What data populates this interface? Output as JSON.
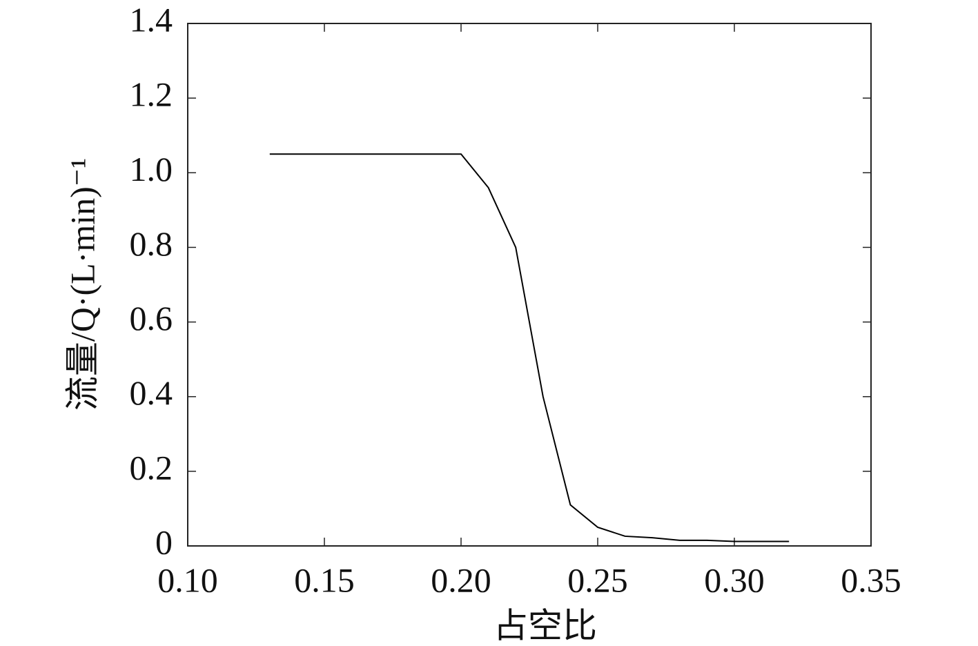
{
  "chart_data": {
    "type": "line",
    "xlabel": "占空比",
    "ylabel": "流量/Q·(L·min)⁻¹",
    "x": [
      0.13,
      0.2,
      0.21,
      0.22,
      0.23,
      0.24,
      0.25,
      0.26,
      0.27,
      0.28,
      0.29,
      0.3,
      0.31,
      0.32
    ],
    "series": [
      {
        "color": "#000000",
        "values": [
          1.05,
          1.05,
          0.96,
          0.8,
          0.4,
          0.11,
          0.05,
          0.026,
          0.022,
          0.015,
          0.015,
          0.012,
          0.012,
          0.012
        ]
      }
    ],
    "xlim": [
      0.1,
      0.35
    ],
    "ylim": [
      0,
      1.4
    ],
    "xticks": [
      {
        "value": 0.1,
        "label": "0.10"
      },
      0.15,
      {
        "value": 0.2,
        "label": "0.20"
      },
      0.25,
      {
        "value": 0.3,
        "label": "0.30"
      },
      0.35
    ],
    "yticks": [
      0,
      0.2,
      0.4,
      0.6,
      0.8,
      {
        "value": 1.0,
        "label": "1.0"
      },
      1.2,
      1.4
    ],
    "grid": false
  }
}
